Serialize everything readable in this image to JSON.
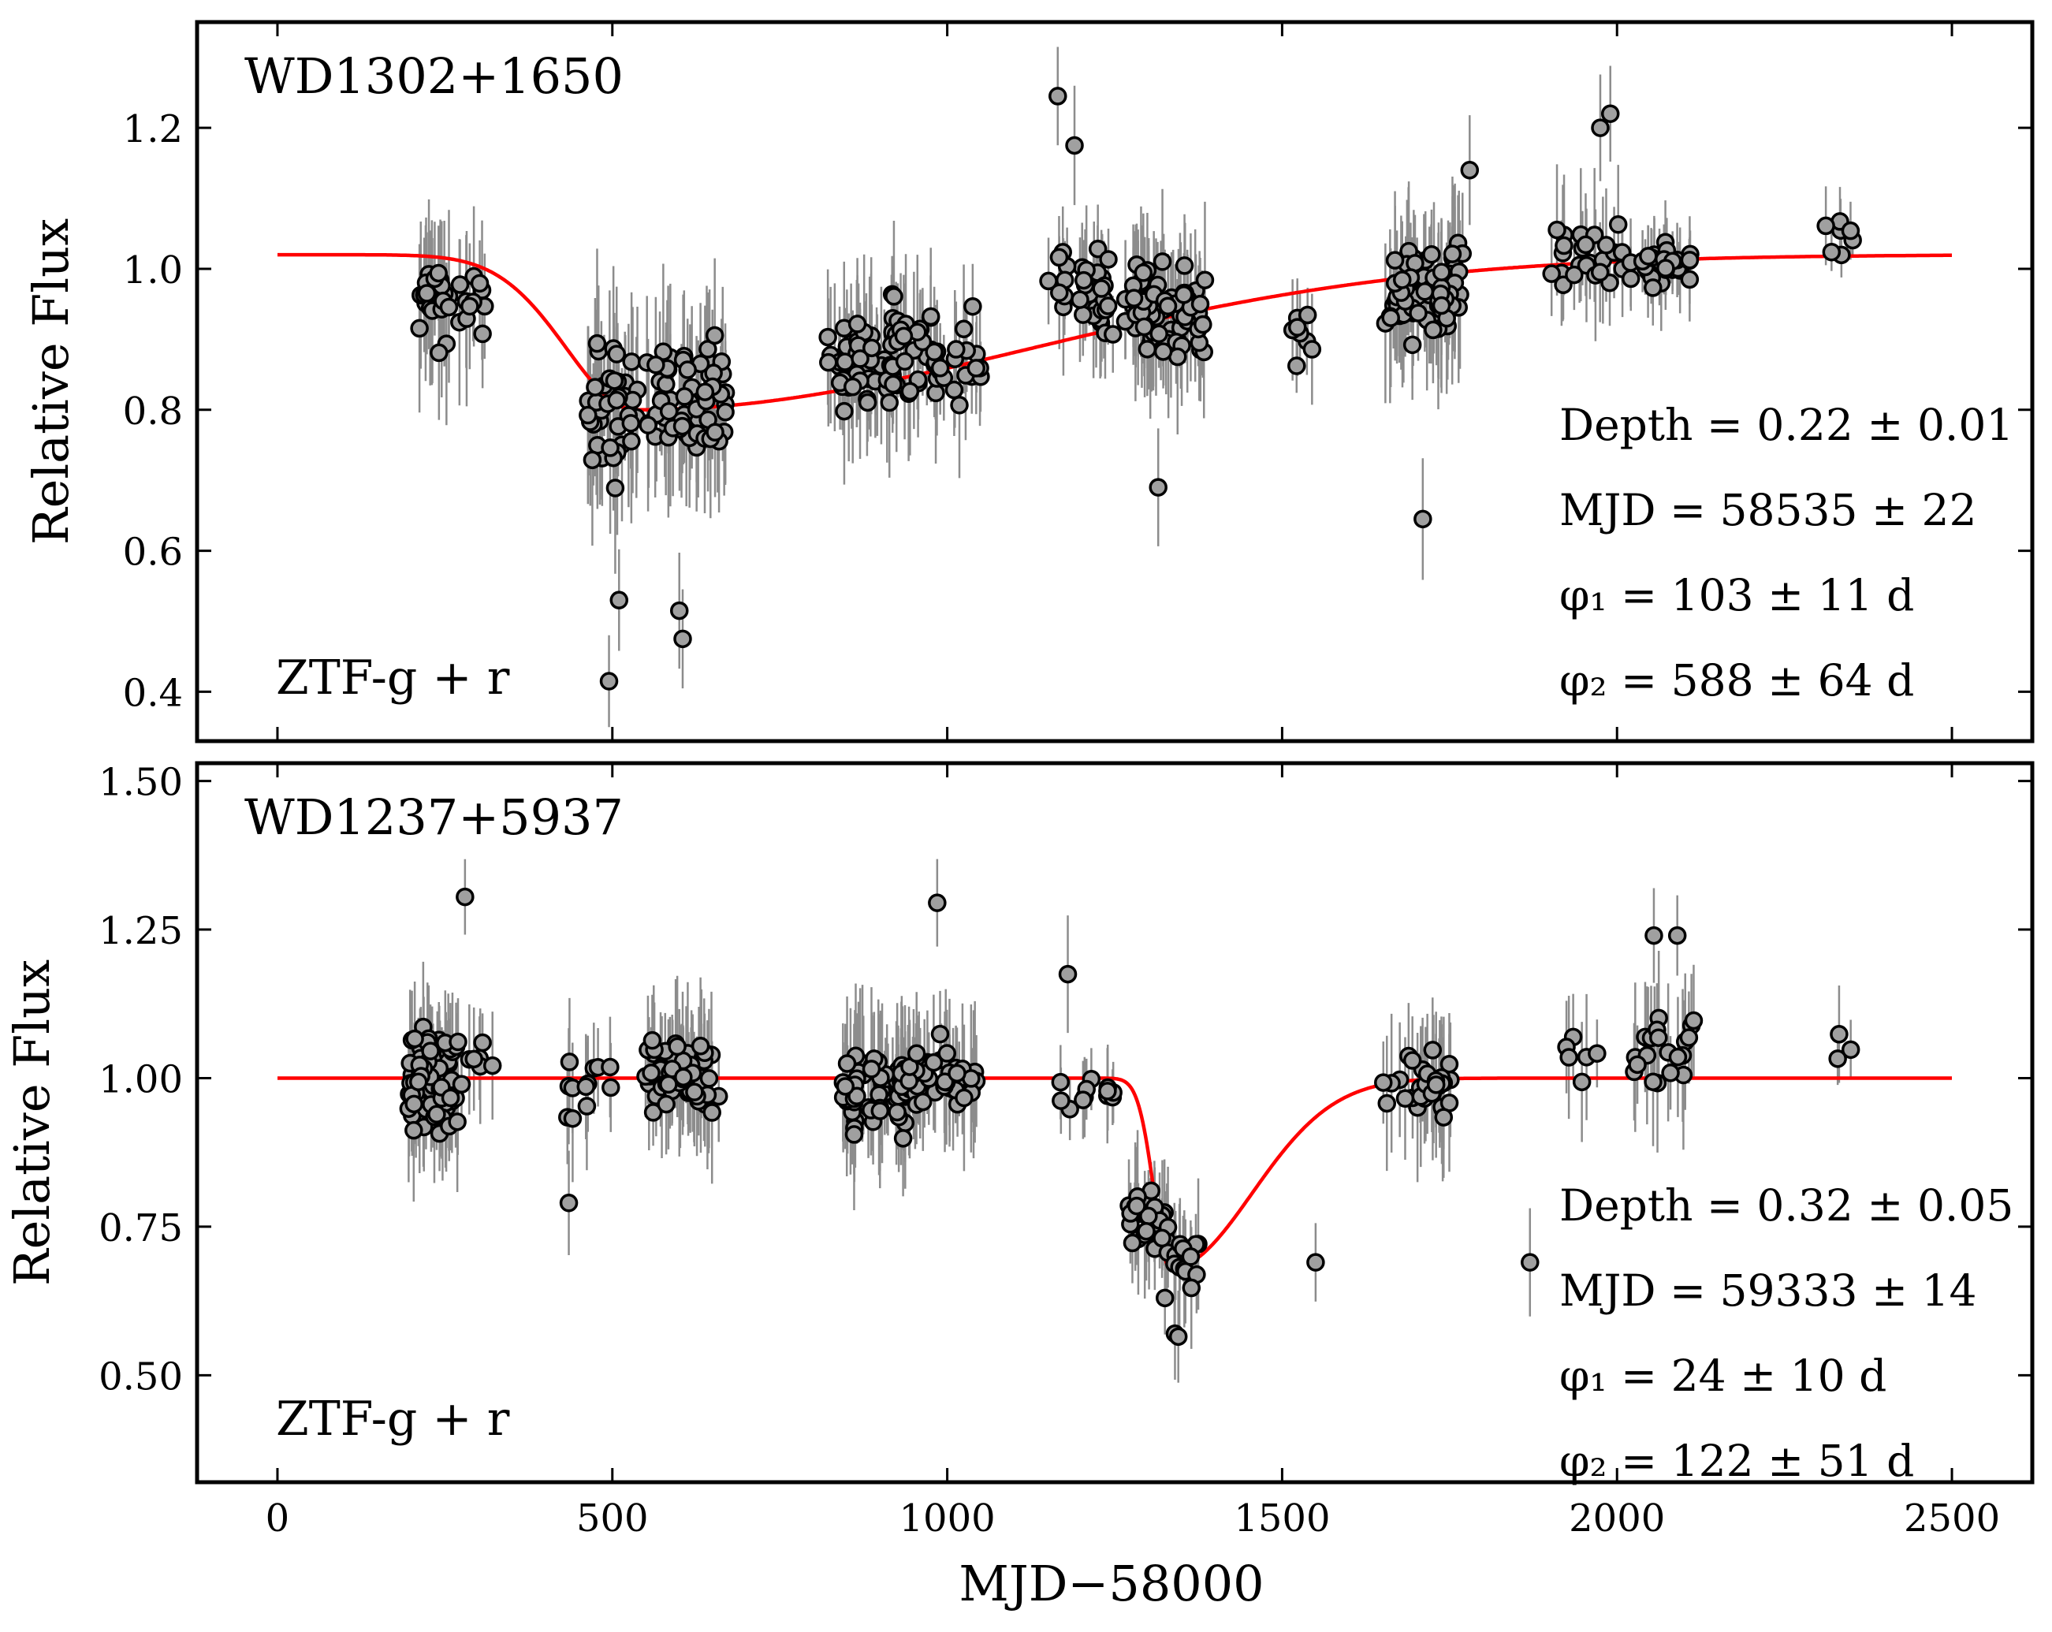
{
  "figure": {
    "xlabel": "MJD−58000",
    "colors": {
      "model": "#ff0000",
      "marker_fill": "#a0a0a0",
      "marker_edge": "#000000",
      "errorbar": "#8c8c8c"
    }
  },
  "chart_data": [
    {
      "type": "scatter",
      "title": "WD1302+1650",
      "band_label": "ZTF-g + r",
      "ylabel": "Relative Flux",
      "xlim": [
        -120,
        2620
      ],
      "ylim": [
        0.33,
        1.35
      ],
      "xticks": [
        0,
        500,
        1000,
        1500,
        2000,
        2500
      ],
      "yticks": [
        0.4,
        0.6,
        0.8,
        1.0,
        1.2
      ],
      "ytick_labels": [
        "0.4",
        "0.6",
        "0.8",
        "1.0",
        "1.2"
      ],
      "annotations": [
        "Depth = 0.22 ± 0.01",
        "MJD = 58535 ± 22",
        "φ₁ = 103 ± 11 d",
        "φ₂ = 588 ± 64 d"
      ],
      "model": {
        "baseline": 1.02,
        "depth": 0.22,
        "t0": 535,
        "phi1": 103,
        "phi2": 588,
        "x_range": [
          0,
          2500
        ]
      },
      "seasons": [
        {
          "center": 260,
          "width": 50,
          "n": 32,
          "mean": 0.94,
          "spread": 0.12,
          "err": 0.09
        },
        {
          "center": 500,
          "width": 40,
          "n": 38,
          "mean": 0.81,
          "spread": 0.16,
          "err": 0.1
        },
        {
          "center": 610,
          "width": 60,
          "n": 62,
          "mean": 0.81,
          "spread": 0.14,
          "err": 0.09
        },
        {
          "center": 870,
          "width": 50,
          "n": 52,
          "mean": 0.87,
          "spread": 0.1,
          "err": 0.08
        },
        {
          "center": 985,
          "width": 70,
          "n": 48,
          "mean": 0.89,
          "spread": 0.12,
          "err": 0.08
        },
        {
          "center": 1200,
          "width": 50,
          "n": 32,
          "mean": 0.97,
          "spread": 0.1,
          "err": 0.07
        },
        {
          "center": 1325,
          "width": 60,
          "n": 82,
          "mean": 0.94,
          "spread": 0.09,
          "err": 0.08
        },
        {
          "center": 1530,
          "width": 15,
          "n": 8,
          "mean": 0.92,
          "spread": 0.08,
          "err": 0.06
        },
        {
          "center": 1710,
          "width": 60,
          "n": 72,
          "mean": 0.97,
          "spread": 0.1,
          "err": 0.09
        },
        {
          "center": 1950,
          "width": 60,
          "n": 24,
          "mean": 1.02,
          "spread": 0.1,
          "err": 0.07
        },
        {
          "center": 2070,
          "width": 50,
          "n": 30,
          "mean": 1.0,
          "spread": 0.05,
          "err": 0.05
        },
        {
          "center": 2330,
          "width": 25,
          "n": 7,
          "mean": 1.04,
          "spread": 0.05,
          "err": 0.04
        }
      ],
      "highlights": [
        [
          1165,
          1.245
        ],
        [
          1990,
          1.22
        ],
        [
          1975,
          1.2
        ],
        [
          1315,
          0.69
        ],
        [
          1710,
          0.645
        ],
        [
          495,
          0.415
        ],
        [
          605,
          0.475
        ],
        [
          600,
          0.515
        ],
        [
          510,
          0.53
        ],
        [
          1190,
          1.175
        ],
        [
          1780,
          1.14
        ]
      ]
    },
    {
      "type": "scatter",
      "title": "WD1237+5937",
      "band_label": "ZTF-g + r",
      "ylabel": "Relative Flux",
      "xlim": [
        -120,
        2620
      ],
      "ylim": [
        0.32,
        1.53
      ],
      "xticks": [
        0,
        500,
        1000,
        1500,
        2000,
        2500
      ],
      "yticks": [
        0.5,
        0.75,
        1.0,
        1.25,
        1.5
      ],
      "ytick_labels": [
        "0.50",
        "0.75",
        "1.00",
        "1.25",
        "1.50"
      ],
      "annotations": [
        "Depth = 0.32 ± 0.05",
        "MJD = 59333 ± 14",
        "φ₁ = 24 ± 10 d",
        "φ₂ = 122 ± 51 d"
      ],
      "model": {
        "baseline": 1.0,
        "depth": 0.32,
        "t0": 1333,
        "phi1": 24,
        "phi2": 122,
        "x_range": [
          0,
          2500
        ]
      },
      "seasons": [
        {
          "center": 235,
          "width": 40,
          "n": 72,
          "mean": 1.0,
          "spread": 0.12,
          "err": 0.09
        },
        {
          "center": 300,
          "width": 30,
          "n": 6,
          "mean": 1.03,
          "spread": 0.06,
          "err": 0.07
        },
        {
          "center": 470,
          "width": 40,
          "n": 12,
          "mean": 0.98,
          "spread": 0.08,
          "err": 0.08
        },
        {
          "center": 600,
          "width": 60,
          "n": 58,
          "mean": 1.0,
          "spread": 0.1,
          "err": 0.09
        },
        {
          "center": 890,
          "width": 50,
          "n": 62,
          "mean": 0.98,
          "spread": 0.1,
          "err": 0.1
        },
        {
          "center": 990,
          "width": 60,
          "n": 48,
          "mean": 1.0,
          "spread": 0.08,
          "err": 0.09
        },
        {
          "center": 1200,
          "width": 50,
          "n": 12,
          "mean": 0.98,
          "spread": 0.06,
          "err": 0.06
        },
        {
          "center": 1300,
          "width": 30,
          "n": 28,
          "mean": 0.76,
          "spread": 0.08,
          "err": 0.08
        },
        {
          "center": 1355,
          "width": 25,
          "n": 12,
          "mean": 0.7,
          "spread": 0.08,
          "err": 0.08
        },
        {
          "center": 1700,
          "width": 55,
          "n": 32,
          "mean": 0.98,
          "spread": 0.09,
          "err": 0.09
        },
        {
          "center": 1950,
          "width": 30,
          "n": 6,
          "mean": 1.03,
          "spread": 0.08,
          "err": 0.08
        },
        {
          "center": 2070,
          "width": 45,
          "n": 22,
          "mean": 1.05,
          "spread": 0.1,
          "err": 0.1
        },
        {
          "center": 2340,
          "width": 20,
          "n": 3,
          "mean": 1.03,
          "spread": 0.08,
          "err": 0.07
        }
      ],
      "highlights": [
        [
          280,
          1.305
        ],
        [
          985,
          1.295
        ],
        [
          1550,
          0.69
        ],
        [
          435,
          0.79
        ],
        [
          1180,
          1.175
        ],
        [
          2055,
          1.24
        ],
        [
          2090,
          1.24
        ],
        [
          1340,
          0.57
        ],
        [
          1345,
          0.565
        ],
        [
          1325,
          0.63
        ],
        [
          1870,
          0.69
        ]
      ]
    }
  ]
}
